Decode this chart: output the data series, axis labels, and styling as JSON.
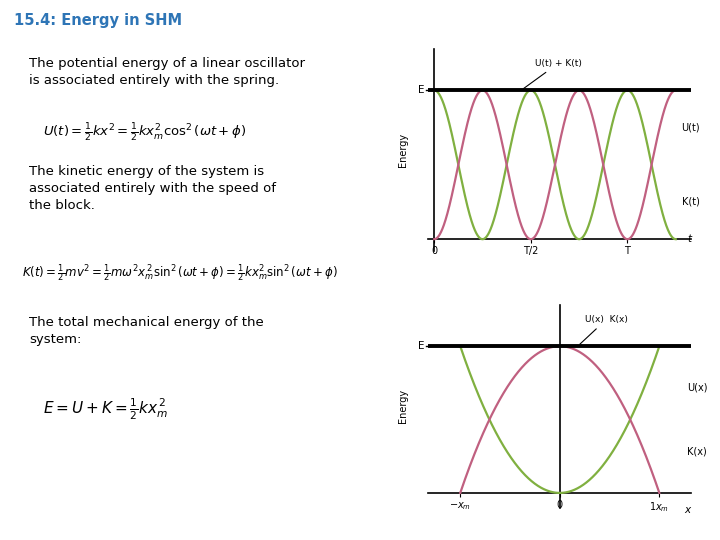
{
  "title": "15.4: Energy in SHM",
  "title_color": "#2E75B6",
  "bg_color": "#FFFFFF",
  "text1": "The potential energy of a linear oscillator\nis associated entirely with the spring.",
  "text2": "The kinetic energy of the system is\nassociated entirely with the speed of\nthe block.",
  "text3": "The total mechanical energy of the\nsystem:",
  "formula1": "$U(t) = \\frac{1}{2}kx^2 = \\frac{1}{2}kx_m^2\\cos^2(\\omega t + \\phi)$",
  "formula2": "$K(t) = \\frac{1}{2}mv^2 = \\frac{1}{2}m\\omega^2 x_m^{\\,2}\\sin^2(\\omega t + \\phi) = \\frac{1}{2}kx_m^2\\sin^2(\\omega t + \\phi)$",
  "formula3": "$E = U + K = \\frac{1}{2}kx_m^{\\,2}$",
  "pink_color": "#C06080",
  "green_color": "#80B040",
  "Energy_label": "Energy",
  "E_label": "E",
  "UK_t_label": "U(t) + K(t)",
  "Ut_label": "U(t)",
  "Kt_label": "K(t)",
  "t_label": "t",
  "Thalf_label": "T/2",
  "T_label": "T",
  "zero_label": "0",
  "UK_x_label": "U(x)  K(x)",
  "Ux_label": "U(x)",
  "Kx_label": "K(x)",
  "x_label": "x",
  "xneg_label": "$-x_m$",
  "xpos_label": "$1x_m$",
  "x0_label": "0"
}
